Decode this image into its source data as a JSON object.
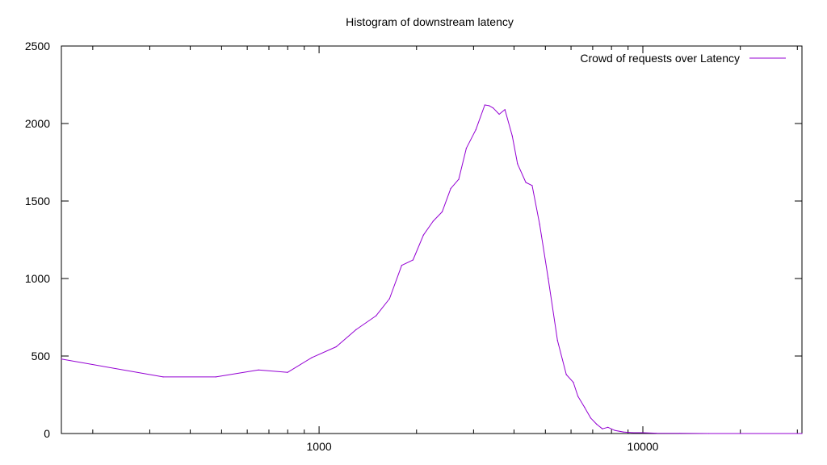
{
  "chart_data": {
    "type": "line",
    "title": "Histogram of downstream latency",
    "xlabel": "",
    "ylabel": "",
    "xscale": "log",
    "xlim": [
      160,
      31000
    ],
    "ylim": [
      0,
      2500
    ],
    "grid": false,
    "legend_position": "top-right",
    "yticks": [
      0,
      500,
      1000,
      1500,
      2000,
      2500
    ],
    "yticklabels": [
      "0",
      "500",
      "1000",
      "1500",
      "2000",
      "2500"
    ],
    "xticks": [
      1000,
      10000
    ],
    "xticklabels": [
      "1000",
      "10000"
    ],
    "series": [
      {
        "name": "Crowd of requests over Latency",
        "color": "#9400d3",
        "x": [
          160,
          330,
          480,
          650,
          800,
          950,
          1130,
          1300,
          1500,
          1650,
          1800,
          1950,
          2100,
          2250,
          2400,
          2550,
          2700,
          2850,
          3050,
          3250,
          3350,
          3450,
          3600,
          3750,
          3950,
          4100,
          4350,
          4550,
          4800,
          5100,
          5450,
          5800,
          6100,
          6300,
          6600,
          6900,
          7200,
          7500,
          7800,
          8200,
          8700,
          9300,
          10000,
          11000,
          13000,
          16000,
          20000,
          31000
        ],
        "values": [
          480,
          365,
          365,
          410,
          395,
          490,
          560,
          670,
          760,
          870,
          1085,
          1120,
          1280,
          1370,
          1430,
          1580,
          1640,
          1840,
          1960,
          2120,
          2115,
          2100,
          2060,
          2090,
          1920,
          1740,
          1620,
          1600,
          1350,
          1000,
          600,
          380,
          330,
          240,
          170,
          100,
          60,
          30,
          40,
          20,
          10,
          5,
          5,
          2,
          1,
          0,
          0,
          0
        ]
      }
    ]
  }
}
